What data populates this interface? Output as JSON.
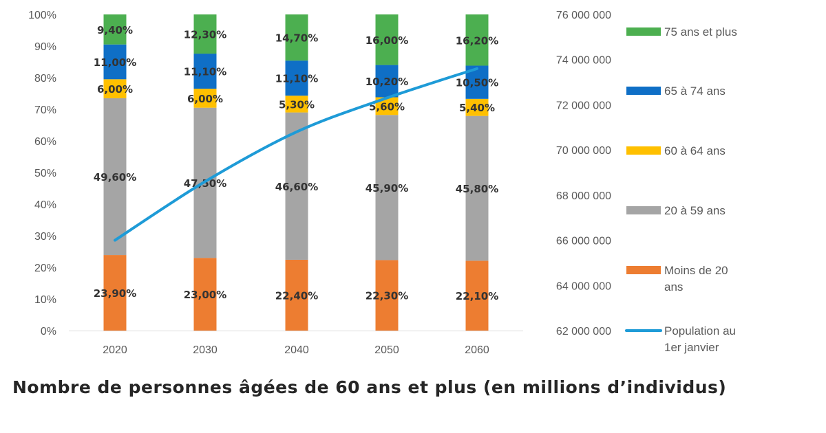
{
  "title": "Nombre de personnes âgées de 60 ans et plus (en millions d’individus)",
  "chart_data": {
    "type": "bar",
    "stacked": true,
    "categories": [
      "2020",
      "2030",
      "2040",
      "2050",
      "2060"
    ],
    "y_left": {
      "ylim": [
        0,
        100
      ],
      "ticks": [
        "0%",
        "10%",
        "20%",
        "30%",
        "40%",
        "50%",
        "60%",
        "70%",
        "80%",
        "90%",
        "100%"
      ]
    },
    "y_right": {
      "ylim": [
        62000000,
        76000000
      ],
      "ticks": [
        "62 000 000",
        "64 000 000",
        "66 000 000",
        "68 000 000",
        "70 000 000",
        "72 000 000",
        "74 000 000",
        "76 000 000"
      ]
    },
    "series": [
      {
        "name": "Moins de 20 ans",
        "color": "#ED7D31",
        "values": [
          23.9,
          23.0,
          22.4,
          22.3,
          22.1
        ],
        "labels": [
          "23,90%",
          "23,00%",
          "22,40%",
          "22,30%",
          "22,10%"
        ]
      },
      {
        "name": "20 à 59 ans",
        "color": "#A5A5A5",
        "values": [
          49.6,
          47.5,
          46.6,
          45.9,
          45.8
        ],
        "labels": [
          "49,60%",
          "47,50%",
          "46,60%",
          "45,90%",
          "45,80%"
        ]
      },
      {
        "name": "60 à 64 ans",
        "color": "#FFC000",
        "values": [
          6.0,
          6.0,
          5.3,
          5.6,
          5.4
        ],
        "labels": [
          "6,00%",
          "6,00%",
          "5,30%",
          "5,60%",
          "5,40%"
        ]
      },
      {
        "name": "65 à 74 ans",
        "color": "#0F6FC6",
        "values": [
          11.0,
          11.1,
          11.1,
          10.2,
          10.5
        ],
        "labels": [
          "11,00%",
          "11,10%",
          "11,10%",
          "10,20%",
          "10,50%"
        ]
      },
      {
        "name": "75 ans et plus",
        "color": "#4CAF50",
        "values": [
          9.4,
          12.3,
          14.7,
          16.0,
          16.2
        ],
        "labels": [
          "9,40%",
          "12,30%",
          "14,70%",
          "16,00%",
          "16,20%"
        ]
      }
    ],
    "line": {
      "name": "Population au 1er janvier",
      "color": "#1E9BD7",
      "axis": "right",
      "values": [
        66000000,
        68600000,
        70800000,
        72300000,
        73600000
      ]
    },
    "legend_position": "right",
    "grid": false
  }
}
